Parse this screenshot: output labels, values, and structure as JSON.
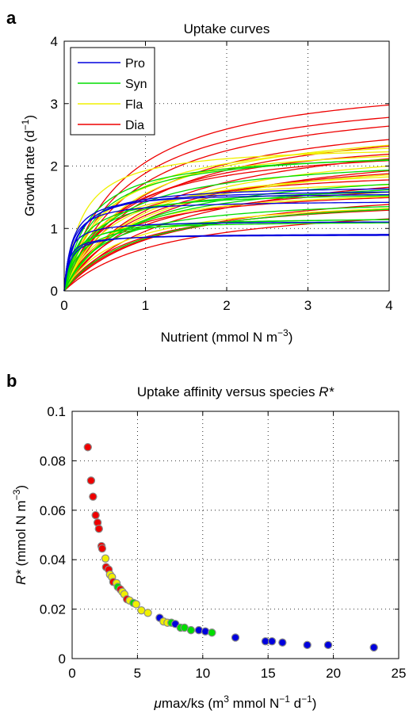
{
  "colors": {
    "Pro": "#0000dd",
    "Syn": "#00dd00",
    "Fla": "#f0f000",
    "Dia": "#ee0000"
  },
  "chart_data": [
    {
      "panel": "a",
      "type": "line",
      "title": "Uptake curves",
      "xlabel": {
        "main": "Nutrient (mmol N m",
        "sup": "−3",
        "end": ")"
      },
      "ylabel": {
        "main": "Growth rate (d",
        "sup": "−1",
        "end": ")"
      },
      "xlim": [
        0,
        4
      ],
      "ylim": [
        0,
        4
      ],
      "xticks": [
        "0",
        "1",
        "2",
        "3",
        "4"
      ],
      "yticks": [
        "0",
        "1",
        "2",
        "3",
        "4"
      ],
      "grid": true,
      "legend": {
        "placement": "top-left",
        "entries": [
          "Pro",
          "Syn",
          "Fla",
          "Dia"
        ]
      },
      "series": [
        {
          "group": "Pro",
          "mumax": 0.9,
          "ks": 0.05
        },
        {
          "group": "Pro",
          "mumax": 0.92,
          "ks": 0.07
        },
        {
          "group": "Pro",
          "mumax": 1.12,
          "ks": 0.06
        },
        {
          "group": "Pro",
          "mumax": 1.45,
          "ks": 0.09
        },
        {
          "group": "Pro",
          "mumax": 1.58,
          "ks": 0.1
        },
        {
          "group": "Pro",
          "mumax": 1.64,
          "ks": 0.14
        },
        {
          "group": "Pro",
          "mumax": 1.7,
          "ks": 0.16
        },
        {
          "group": "Syn",
          "mumax": 1.12,
          "ks": 0.11
        },
        {
          "group": "Syn",
          "mumax": 1.18,
          "ks": 0.14
        },
        {
          "group": "Syn",
          "mumax": 1.2,
          "ks": 0.2
        },
        {
          "group": "Syn",
          "mumax": 1.6,
          "ks": 0.2
        },
        {
          "group": "Syn",
          "mumax": 1.7,
          "ks": 0.3
        },
        {
          "group": "Syn",
          "mumax": 2.25,
          "ks": 0.3
        },
        {
          "group": "Syn",
          "mumax": 2.3,
          "ks": 0.38
        },
        {
          "group": "Syn",
          "mumax": 1.52,
          "ks": 0.5
        },
        {
          "group": "Syn",
          "mumax": 2.2,
          "ks": 0.55
        },
        {
          "group": "Syn",
          "mumax": 1.9,
          "ks": 0.7
        },
        {
          "group": "Syn",
          "mumax": 2.05,
          "ks": 0.8
        },
        {
          "group": "Syn",
          "mumax": 1.6,
          "ks": 0.9
        },
        {
          "group": "Fla",
          "mumax": 2.35,
          "ks": 0.22
        },
        {
          "group": "Fla",
          "mumax": 2.4,
          "ks": 0.45
        },
        {
          "group": "Fla",
          "mumax": 2.6,
          "ks": 0.55
        },
        {
          "group": "Fla",
          "mumax": 1.85,
          "ks": 0.35
        },
        {
          "group": "Fla",
          "mumax": 2.1,
          "ks": 0.6
        },
        {
          "group": "Fla",
          "mumax": 2.8,
          "ks": 0.8
        },
        {
          "group": "Fla",
          "mumax": 1.7,
          "ks": 0.5
        },
        {
          "group": "Fla",
          "mumax": 2.3,
          "ks": 0.95
        },
        {
          "group": "Fla",
          "mumax": 2.5,
          "ks": 1.0
        },
        {
          "group": "Fla",
          "mumax": 1.55,
          "ks": 0.7
        },
        {
          "group": "Dia",
          "mumax": 3.5,
          "ks": 0.7
        },
        {
          "group": "Dia",
          "mumax": 3.3,
          "ks": 0.75
        },
        {
          "group": "Dia",
          "mumax": 3.2,
          "ks": 0.85
        },
        {
          "group": "Dia",
          "mumax": 3.0,
          "ks": 0.95
        },
        {
          "group": "Dia",
          "mumax": 2.9,
          "ks": 1.0
        },
        {
          "group": "Dia",
          "mumax": 2.6,
          "ks": 0.75
        },
        {
          "group": "Dia",
          "mumax": 2.7,
          "ks": 1.1
        },
        {
          "group": "Dia",
          "mumax": 2.5,
          "ks": 1.2
        },
        {
          "group": "Dia",
          "mumax": 2.4,
          "ks": 0.6
        },
        {
          "group": "Dia",
          "mumax": 2.3,
          "ks": 0.9
        },
        {
          "group": "Dia",
          "mumax": 2.2,
          "ks": 1.3
        },
        {
          "group": "Dia",
          "mumax": 2.0,
          "ks": 0.5
        },
        {
          "group": "Dia",
          "mumax": 1.9,
          "ks": 0.8
        },
        {
          "group": "Dia",
          "mumax": 1.8,
          "ks": 1.2
        },
        {
          "group": "Dia",
          "mumax": 1.7,
          "ks": 0.55
        },
        {
          "group": "Dia",
          "mumax": 1.65,
          "ks": 1.0
        },
        {
          "group": "Dia",
          "mumax": 1.55,
          "ks": 0.8
        },
        {
          "group": "Dia",
          "mumax": 1.5,
          "ks": 1.2
        }
      ]
    },
    {
      "panel": "b",
      "type": "scatter",
      "title": {
        "main": "Uptake affinity versus species ",
        "italic": "R*"
      },
      "xlabel": {
        "mu": "μ",
        "a": "max/ks (m",
        "sup1": "3",
        "b": " mmol N",
        "sup2": "−1",
        "c": " d",
        "sup3": "−1",
        "d": ")"
      },
      "ylabel": {
        "italic": "R*",
        "main": " (mmol N m",
        "sup": "−3",
        "end": ")"
      },
      "xlim": [
        0,
        25
      ],
      "ylim": [
        0,
        0.1
      ],
      "xticks": [
        "0",
        "5",
        "10",
        "15",
        "20",
        "25"
      ],
      "yticks": [
        "0",
        "0.02",
        "0.04",
        "0.06",
        "0.08",
        "0.1"
      ],
      "grid": true,
      "points": [
        {
          "x": 1.2,
          "y": 0.0855,
          "group": "Dia"
        },
        {
          "x": 1.45,
          "y": 0.072,
          "group": "Dia"
        },
        {
          "x": 1.6,
          "y": 0.0655,
          "group": "Dia"
        },
        {
          "x": 1.8,
          "y": 0.058,
          "group": "Dia"
        },
        {
          "x": 1.95,
          "y": 0.055,
          "group": "Dia"
        },
        {
          "x": 2.05,
          "y": 0.0525,
          "group": "Dia"
        },
        {
          "x": 2.25,
          "y": 0.0455,
          "group": "Dia"
        },
        {
          "x": 2.3,
          "y": 0.0445,
          "group": "Dia"
        },
        {
          "x": 2.55,
          "y": 0.0405,
          "group": "Fla"
        },
        {
          "x": 2.6,
          "y": 0.037,
          "group": "Dia"
        },
        {
          "x": 2.8,
          "y": 0.036,
          "group": "Dia"
        },
        {
          "x": 2.9,
          "y": 0.034,
          "group": "Fla"
        },
        {
          "x": 3.05,
          "y": 0.033,
          "group": "Fla"
        },
        {
          "x": 3.15,
          "y": 0.031,
          "group": "Dia"
        },
        {
          "x": 3.4,
          "y": 0.0305,
          "group": "Fla"
        },
        {
          "x": 3.5,
          "y": 0.029,
          "group": "Syn"
        },
        {
          "x": 3.7,
          "y": 0.028,
          "group": "Dia"
        },
        {
          "x": 3.85,
          "y": 0.027,
          "group": "Fla"
        },
        {
          "x": 4.0,
          "y": 0.026,
          "group": "Fla"
        },
        {
          "x": 4.2,
          "y": 0.024,
          "group": "Dia"
        },
        {
          "x": 4.4,
          "y": 0.0235,
          "group": "Fla"
        },
        {
          "x": 4.7,
          "y": 0.0225,
          "group": "Syn"
        },
        {
          "x": 4.9,
          "y": 0.022,
          "group": "Fla"
        },
        {
          "x": 5.3,
          "y": 0.0195,
          "group": "Fla"
        },
        {
          "x": 5.8,
          "y": 0.0185,
          "group": "Fla"
        },
        {
          "x": 6.7,
          "y": 0.0165,
          "group": "Pro"
        },
        {
          "x": 7.0,
          "y": 0.015,
          "group": "Fla"
        },
        {
          "x": 7.3,
          "y": 0.0145,
          "group": "Fla"
        },
        {
          "x": 7.6,
          "y": 0.0145,
          "group": "Syn"
        },
        {
          "x": 7.9,
          "y": 0.014,
          "group": "Pro"
        },
        {
          "x": 8.3,
          "y": 0.0125,
          "group": "Syn"
        },
        {
          "x": 8.6,
          "y": 0.0125,
          "group": "Syn"
        },
        {
          "x": 9.1,
          "y": 0.0115,
          "group": "Syn"
        },
        {
          "x": 9.7,
          "y": 0.0115,
          "group": "Pro"
        },
        {
          "x": 10.2,
          "y": 0.011,
          "group": "Pro"
        },
        {
          "x": 10.7,
          "y": 0.0105,
          "group": "Syn"
        },
        {
          "x": 12.5,
          "y": 0.0085,
          "group": "Pro"
        },
        {
          "x": 14.8,
          "y": 0.007,
          "group": "Pro"
        },
        {
          "x": 15.3,
          "y": 0.007,
          "group": "Pro"
        },
        {
          "x": 16.1,
          "y": 0.0065,
          "group": "Pro"
        },
        {
          "x": 18.0,
          "y": 0.0055,
          "group": "Pro"
        },
        {
          "x": 19.6,
          "y": 0.0055,
          "group": "Pro"
        },
        {
          "x": 23.1,
          "y": 0.0045,
          "group": "Pro"
        }
      ]
    }
  ]
}
